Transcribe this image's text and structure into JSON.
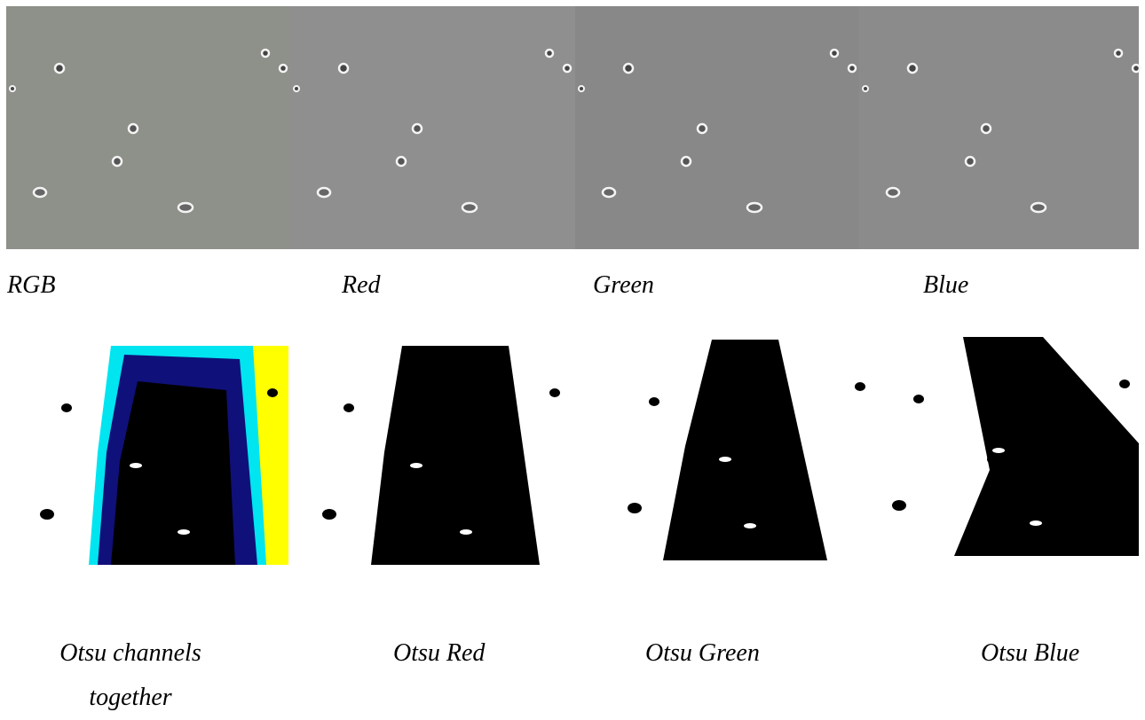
{
  "figure": {
    "top_captions": [
      "RGB",
      "Red",
      "Green",
      "Blue"
    ],
    "bottom_captions": [
      "Otsu channels together",
      "Otsu Red",
      "Otsu Green",
      "Otsu Blue"
    ]
  }
}
